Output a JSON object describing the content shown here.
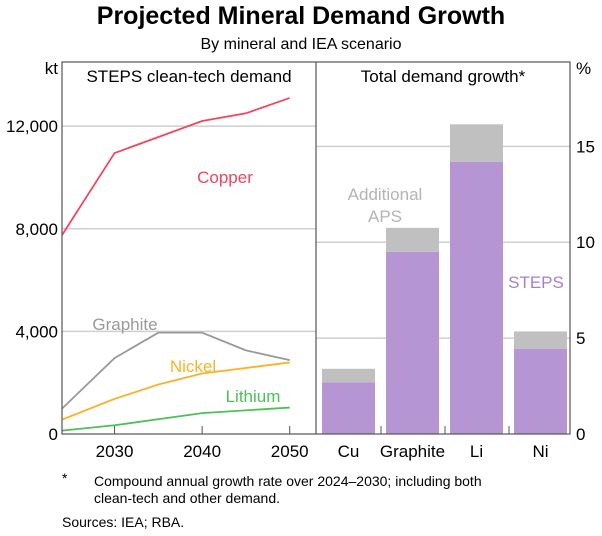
{
  "chart_data": [
    {
      "type": "line",
      "title": "Projected Mineral Demand Growth",
      "subtitle": "By mineral and IEA scenario",
      "panel_title": "STEPS clean-tech demand",
      "ylabel": "kt",
      "ylim": [
        0,
        14500
      ],
      "xlim": [
        2024,
        2053
      ],
      "yticks": [
        0,
        4000,
        8000,
        12000
      ],
      "ytick_labels": [
        "0",
        "4,000",
        "8,000",
        "12,000"
      ],
      "xticks": [
        2030,
        2040,
        2050
      ],
      "xtick_labels": [
        "2030",
        "2040",
        "2050"
      ],
      "grid": true,
      "series": [
        {
          "name": "Copper",
          "color": "#f0465f",
          "x": [
            2024,
            2030,
            2040,
            2045,
            2050
          ],
          "y": [
            7750,
            10950,
            12200,
            12500,
            13100
          ]
        },
        {
          "name": "Graphite",
          "color": "#999999",
          "x": [
            2024,
            2030,
            2035,
            2040,
            2045,
            2050
          ],
          "y": [
            990,
            2960,
            3950,
            3950,
            3260,
            2880
          ]
        },
        {
          "name": "Nickel",
          "color": "#fbb22a",
          "x": [
            2024,
            2030,
            2035,
            2040,
            2050
          ],
          "y": [
            560,
            1370,
            1930,
            2360,
            2790
          ]
        },
        {
          "name": "Lithium",
          "color": "#4dc05a",
          "x": [
            2024,
            2030,
            2040,
            2050
          ],
          "y": [
            130,
            340,
            815,
            1030
          ]
        }
      ]
    },
    {
      "type": "bar",
      "panel_title": "Total demand growth*",
      "ylabel": "%",
      "ylim": [
        0,
        19.4
      ],
      "yticks": [
        0,
        5,
        10,
        15
      ],
      "ytick_labels": [
        "0",
        "5",
        "10",
        "15"
      ],
      "grid": true,
      "categories": [
        "Cu",
        "Graphite",
        "Li",
        "Ni"
      ],
      "stacked": true,
      "series": [
        {
          "name": "STEPS",
          "color": "#b695d4",
          "values": [
            2.7,
            9.5,
            14.2,
            4.45
          ]
        },
        {
          "name": "Additional APS",
          "color": "#c0c0c0",
          "values": [
            0.7,
            1.25,
            1.95,
            0.9
          ]
        }
      ],
      "annotations": [
        "Additional APS",
        "STEPS"
      ]
    }
  ],
  "footnote": {
    "marker": "*",
    "text_line1": "Compound annual growth rate over 2024–2030; including both",
    "text_line2": "clean-tech and other demand."
  },
  "sources": "Sources: IEA; RBA."
}
